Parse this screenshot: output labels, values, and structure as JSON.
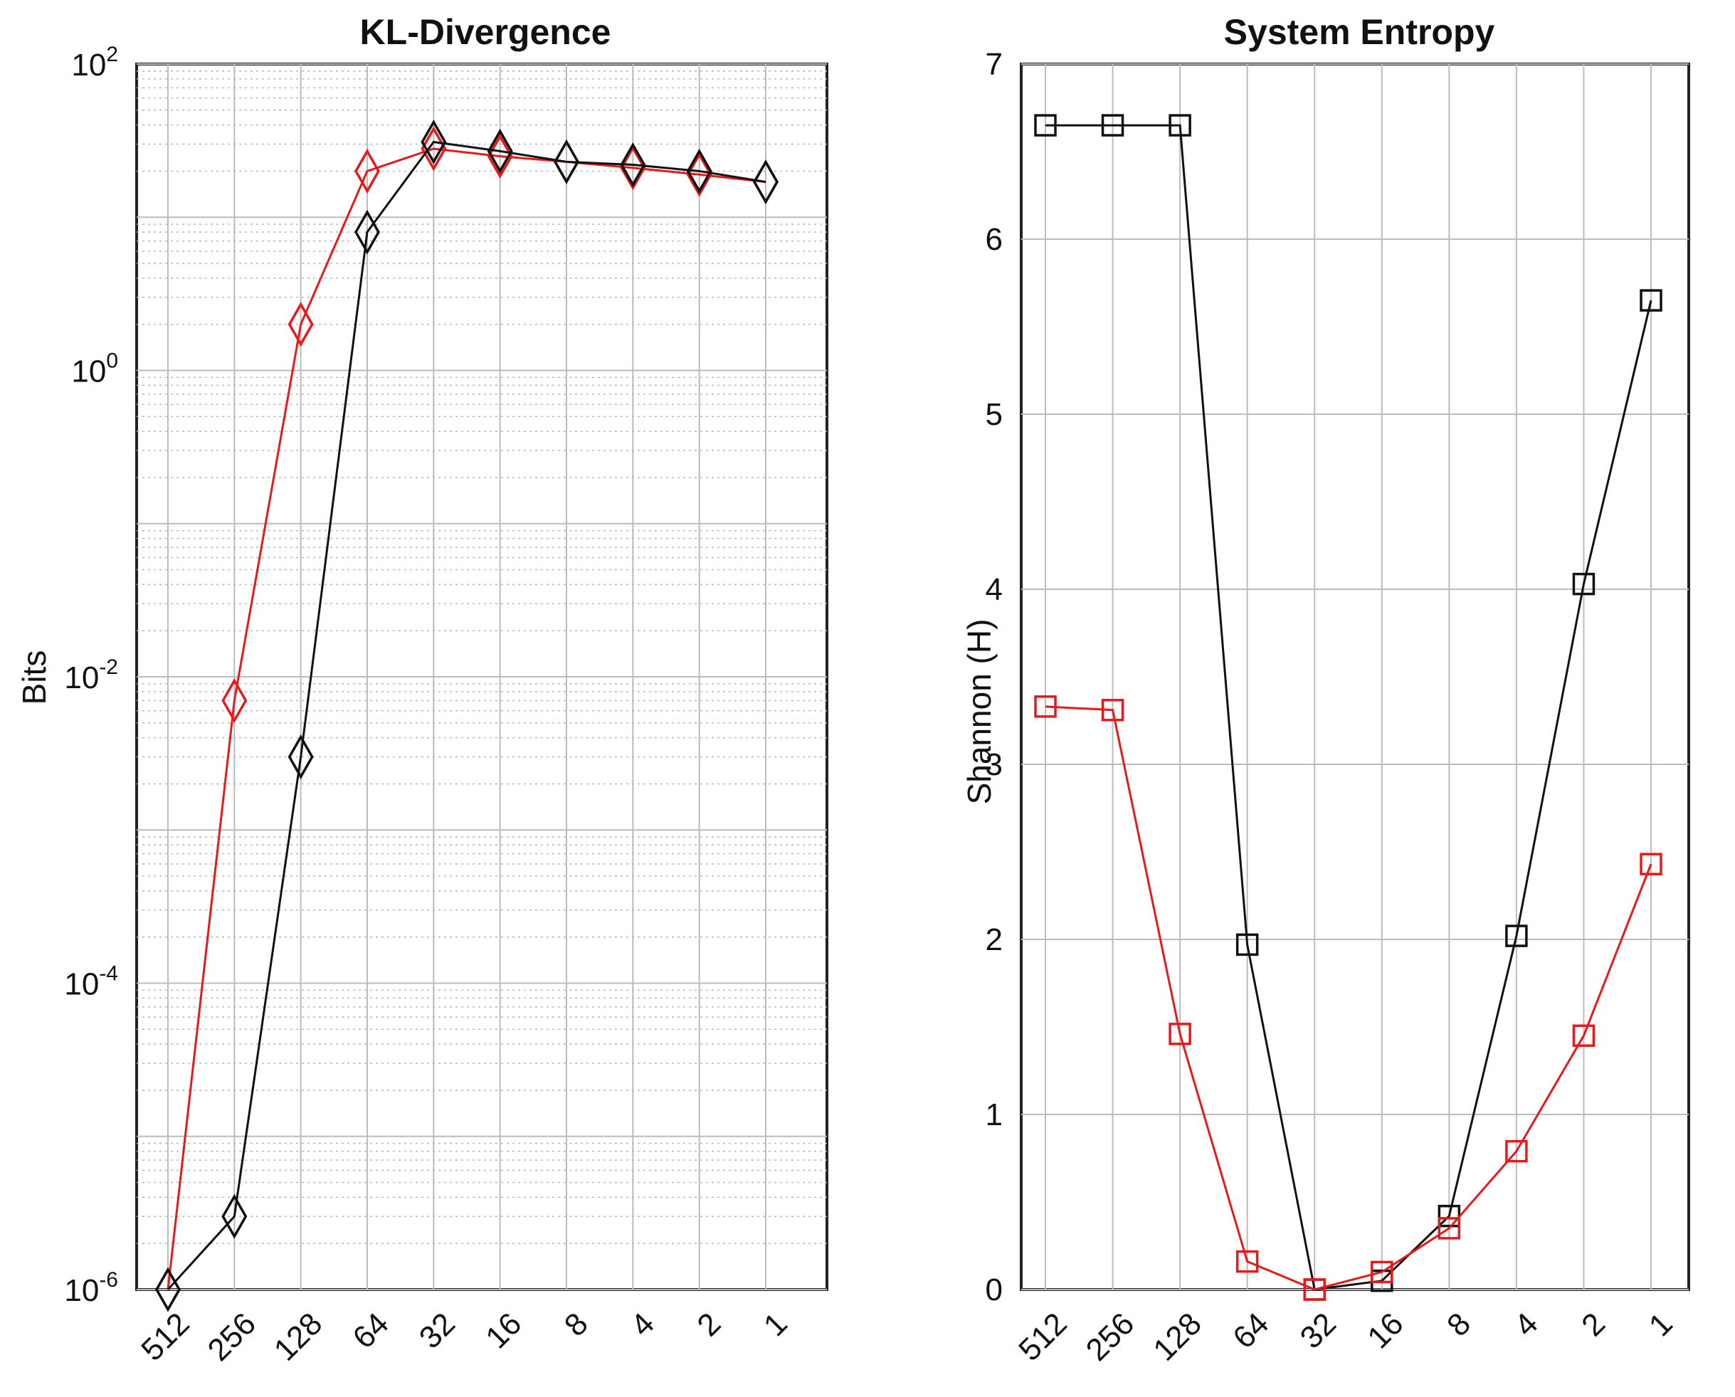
{
  "chart_data": [
    {
      "type": "line",
      "title": "KL-Divergence",
      "ylabel": "Bits",
      "xlabel": "",
      "yscale": "log",
      "ylim": [
        1e-06,
        100
      ],
      "categories": [
        "512",
        "256",
        "128",
        "64",
        "32",
        "16",
        "8",
        "4",
        "2",
        "1"
      ],
      "ytick_labels": [
        {
          "base": "10",
          "exp": "-6",
          "value": 1e-06
        },
        {
          "base": "10",
          "exp": "-4",
          "value": 0.0001
        },
        {
          "base": "10",
          "exp": "-2",
          "value": 0.01
        },
        {
          "base": "10",
          "exp": "0",
          "value": 1
        },
        {
          "base": "10",
          "exp": "2",
          "value": 100
        }
      ],
      "grid": true,
      "marker": "diamond",
      "series": [
        {
          "color": "#e8191b",
          "values": [
            1e-06,
            0.007,
            2.0,
            20,
            28,
            25,
            23,
            21,
            19,
            17
          ]
        },
        {
          "color": "#111111",
          "values": [
            1e-06,
            3e-06,
            0.003,
            8,
            31,
            27,
            23,
            22,
            20,
            17
          ]
        }
      ]
    },
    {
      "type": "line",
      "title": "System Entropy",
      "ylabel": "Shannon (H)",
      "xlabel": "",
      "ylim": [
        0,
        7
      ],
      "categories": [
        "512",
        "256",
        "128",
        "64",
        "32",
        "16",
        "8",
        "4",
        "2",
        "1"
      ],
      "yticks": [
        "0",
        "1",
        "2",
        "3",
        "4",
        "5",
        "6",
        "7"
      ],
      "grid": true,
      "marker": "square",
      "series": [
        {
          "color": "#111111",
          "values": [
            6.65,
            6.65,
            6.65,
            1.97,
            0.0,
            0.05,
            0.42,
            2.02,
            4.03,
            5.65
          ]
        },
        {
          "color": "#e8191b",
          "values": [
            3.33,
            3.31,
            1.46,
            0.16,
            0.0,
            0.1,
            0.35,
            0.79,
            1.45,
            2.43
          ]
        }
      ]
    }
  ]
}
